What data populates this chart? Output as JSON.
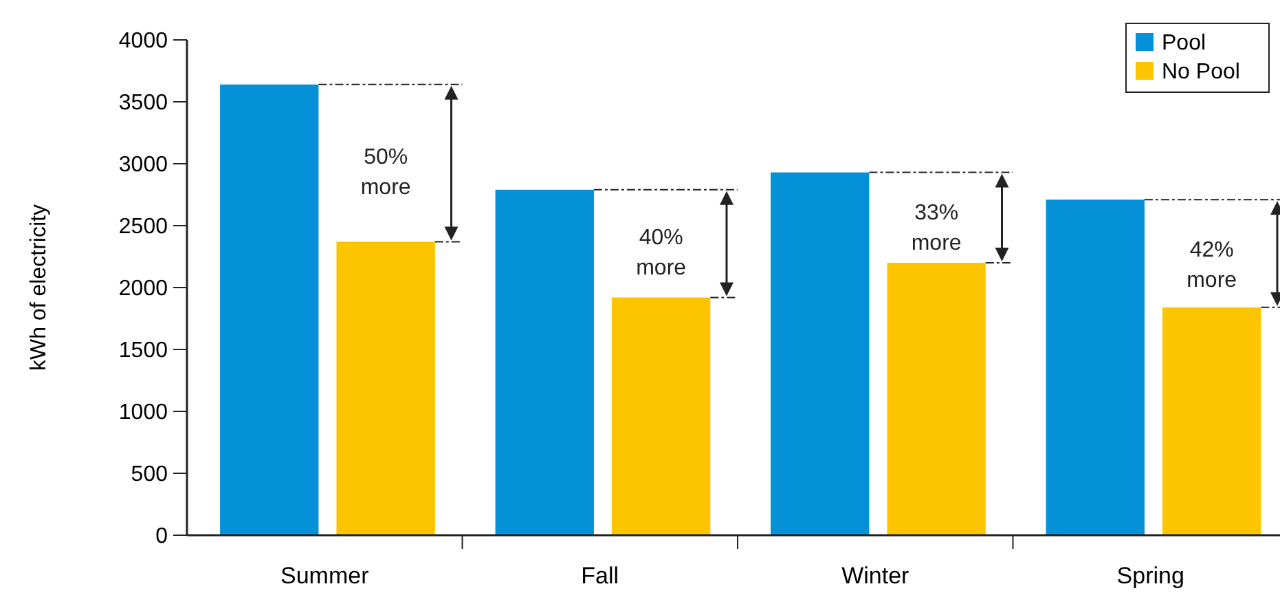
{
  "chart_data": {
    "type": "bar",
    "ylabel": "kWh of electricity",
    "categories": [
      "Summer",
      "Fall",
      "Winter",
      "Spring"
    ],
    "series": [
      {
        "name": "Pool",
        "color": "#0591d8",
        "values": [
          3640,
          2790,
          2930,
          2710
        ]
      },
      {
        "name": "No Pool",
        "color": "#fdc500",
        "values": [
          2370,
          1920,
          2200,
          1840
        ]
      }
    ],
    "ylim": [
      0,
      4000
    ],
    "yticks": [
      0,
      500,
      1000,
      1500,
      2000,
      2500,
      3000,
      3500,
      4000
    ],
    "annotations": [
      {
        "text": "50% more",
        "x": "Summer",
        "y": 3000
      },
      {
        "text": "40% more",
        "x": "Fall",
        "y": 2350
      },
      {
        "text": "33% more",
        "x": "Winter",
        "y": 2550
      },
      {
        "text": "42% more",
        "x": "Spring",
        "y": 2250
      }
    ],
    "legend": "top right",
    "grid": false
  }
}
